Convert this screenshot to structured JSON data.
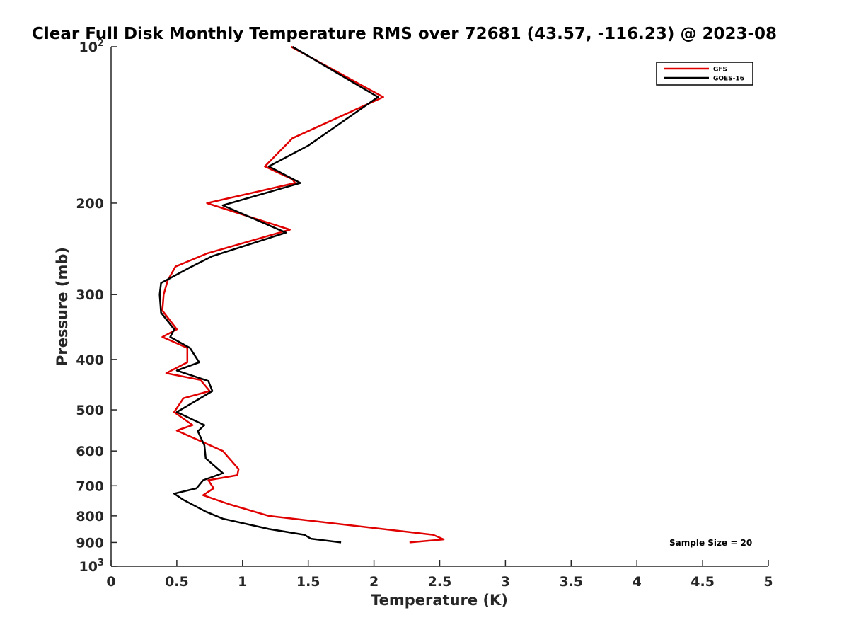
{
  "chart_data": {
    "type": "line",
    "title": "Clear Full Disk Monthly Temperature RMS over 72681 (43.57, -116.23) @ 2023-08",
    "xlabel": "Temperature (K)",
    "ylabel": "Pressure (mb)",
    "xlim": [
      0,
      5
    ],
    "ylim": [
      100,
      1000
    ],
    "y_scale": "log",
    "y_reversed": true,
    "x_ticks": [
      "0",
      "0.5",
      "1",
      "1.5",
      "2",
      "2.5",
      "3",
      "3.5",
      "4",
      "4.5",
      "5"
    ],
    "y_ticks": [
      {
        "value": 100,
        "base": "10",
        "exp": "2"
      },
      {
        "value": 200,
        "label": "200"
      },
      {
        "value": 300,
        "label": "300"
      },
      {
        "value": 400,
        "label": "400"
      },
      {
        "value": 500,
        "label": "500"
      },
      {
        "value": 600,
        "label": "600"
      },
      {
        "value": 700,
        "label": "700"
      },
      {
        "value": 800,
        "label": "800"
      },
      {
        "value": 900,
        "label": "900"
      },
      {
        "value": 1000,
        "base": "10",
        "exp": "3"
      }
    ],
    "grid": false,
    "legend_position": "top-right",
    "series": [
      {
        "name": "GFS",
        "color": "#e00000",
        "points": [
          [
            1.37,
            100
          ],
          [
            2.07,
            125
          ],
          [
            1.38,
            150
          ],
          [
            1.17,
            170
          ],
          [
            1.38,
            180
          ],
          [
            1.4,
            183
          ],
          [
            0.73,
            200
          ],
          [
            1.36,
            225
          ],
          [
            0.73,
            250
          ],
          [
            0.49,
            265
          ],
          [
            0.43,
            282
          ],
          [
            0.4,
            300
          ],
          [
            0.39,
            322
          ],
          [
            0.5,
            350
          ],
          [
            0.39,
            362
          ],
          [
            0.58,
            380
          ],
          [
            0.58,
            405
          ],
          [
            0.42,
            425
          ],
          [
            0.68,
            438
          ],
          [
            0.75,
            460
          ],
          [
            0.55,
            475
          ],
          [
            0.48,
            505
          ],
          [
            0.62,
            535
          ],
          [
            0.5,
            548
          ],
          [
            0.85,
            600
          ],
          [
            0.97,
            650
          ],
          [
            0.96,
            668
          ],
          [
            0.74,
            683
          ],
          [
            0.78,
            708
          ],
          [
            0.7,
            730
          ],
          [
            0.9,
            760
          ],
          [
            1.2,
            800
          ],
          [
            2.45,
            870
          ],
          [
            2.53,
            888
          ],
          [
            2.27,
            900
          ]
        ]
      },
      {
        "name": "GOES-16",
        "color": "#000000",
        "points": [
          [
            1.38,
            100
          ],
          [
            2.03,
            125
          ],
          [
            1.5,
            155
          ],
          [
            1.2,
            170
          ],
          [
            1.44,
            183
          ],
          [
            0.85,
            202
          ],
          [
            1.33,
            228
          ],
          [
            0.77,
            253
          ],
          [
            0.6,
            266
          ],
          [
            0.38,
            285
          ],
          [
            0.37,
            300
          ],
          [
            0.38,
            325
          ],
          [
            0.48,
            350
          ],
          [
            0.45,
            362
          ],
          [
            0.6,
            380
          ],
          [
            0.67,
            405
          ],
          [
            0.5,
            420
          ],
          [
            0.74,
            440
          ],
          [
            0.77,
            460
          ],
          [
            0.5,
            505
          ],
          [
            0.71,
            535
          ],
          [
            0.66,
            550
          ],
          [
            0.71,
            585
          ],
          [
            0.72,
            620
          ],
          [
            0.85,
            662
          ],
          [
            0.7,
            683
          ],
          [
            0.65,
            708
          ],
          [
            0.48,
            725
          ],
          [
            0.55,
            745
          ],
          [
            0.72,
            785
          ],
          [
            0.85,
            810
          ],
          [
            1.2,
            848
          ],
          [
            1.47,
            870
          ],
          [
            1.52,
            885
          ],
          [
            1.75,
            900
          ]
        ]
      }
    ],
    "annotation": "Sample Size = 20"
  }
}
